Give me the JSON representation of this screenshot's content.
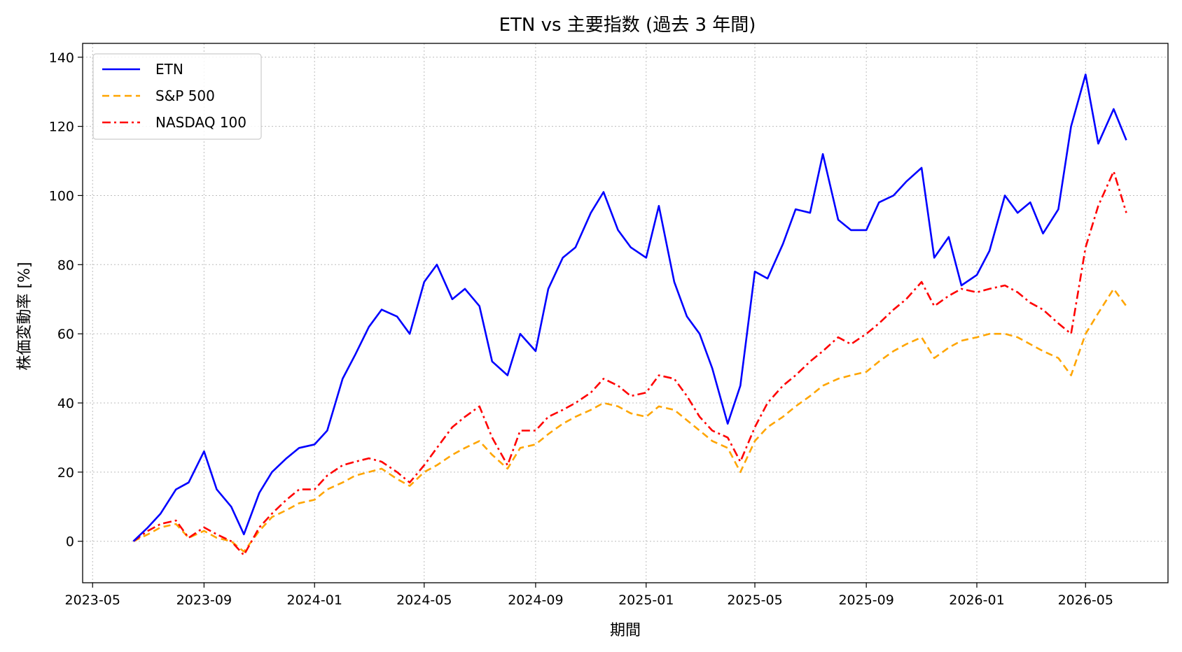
{
  "chart_data": {
    "type": "line",
    "title": "ETN vs 主要指数 (過去 3 年間)",
    "xlabel": "期間",
    "ylabel": "株価変動率 [%]",
    "x_tick_labels": [
      "2023-05",
      "2023-09",
      "2024-01",
      "2024-05",
      "2024-09",
      "2025-01",
      "2025-05",
      "2025-09",
      "2026-01",
      "2026-05"
    ],
    "y_ticks": [
      0,
      20,
      40,
      60,
      80,
      100,
      120,
      140
    ],
    "xlim": [
      "2023-04-20",
      "2026-07-31"
    ],
    "ylim": [
      -12,
      144
    ],
    "grid": true,
    "legend_position": "upper-left",
    "x": [
      "2023-06-15",
      "2023-07-01",
      "2023-07-15",
      "2023-08-01",
      "2023-08-15",
      "2023-09-01",
      "2023-09-15",
      "2023-10-01",
      "2023-10-15",
      "2023-11-01",
      "2023-11-15",
      "2023-12-01",
      "2023-12-15",
      "2024-01-01",
      "2024-01-15",
      "2024-02-01",
      "2024-02-15",
      "2024-03-01",
      "2024-03-15",
      "2024-04-01",
      "2024-04-15",
      "2024-05-01",
      "2024-05-15",
      "2024-06-01",
      "2024-06-15",
      "2024-07-01",
      "2024-07-15",
      "2024-08-01",
      "2024-08-15",
      "2024-09-01",
      "2024-09-15",
      "2024-10-01",
      "2024-10-15",
      "2024-11-01",
      "2024-11-15",
      "2024-12-01",
      "2024-12-15",
      "2025-01-01",
      "2025-01-15",
      "2025-02-01",
      "2025-02-15",
      "2025-03-01",
      "2025-03-15",
      "2025-04-01",
      "2025-04-15",
      "2025-05-01",
      "2025-05-15",
      "2025-06-01",
      "2025-06-15",
      "2025-07-01",
      "2025-07-15",
      "2025-08-01",
      "2025-08-15",
      "2025-09-01",
      "2025-09-15",
      "2025-10-01",
      "2025-10-15",
      "2025-11-01",
      "2025-11-15",
      "2025-12-01",
      "2025-12-15",
      "2026-01-01",
      "2026-01-15",
      "2026-02-01",
      "2026-02-15",
      "2026-03-01",
      "2026-03-15",
      "2026-04-01",
      "2026-04-15",
      "2026-05-01",
      "2026-05-15",
      "2026-06-01",
      "2026-06-15"
    ],
    "series": [
      {
        "name": "ETN",
        "color": "#0000ff",
        "dash": "solid",
        "values": [
          0,
          4,
          8,
          15,
          17,
          26,
          15,
          10,
          2,
          14,
          20,
          24,
          27,
          28,
          32,
          47,
          54,
          62,
          67,
          65,
          60,
          75,
          80,
          70,
          73,
          68,
          52,
          48,
          60,
          55,
          73,
          82,
          85,
          95,
          101,
          90,
          85,
          82,
          97,
          75,
          65,
          60,
          50,
          34,
          45,
          78,
          76,
          86,
          96,
          95,
          112,
          93,
          90,
          90,
          98,
          100,
          104,
          108,
          82,
          88,
          74,
          77,
          84,
          100,
          95,
          98,
          89,
          96,
          120,
          135,
          115,
          125,
          116
        ]
      },
      {
        "name": "S&P 500",
        "color": "#ffa500",
        "dash": "dashed",
        "values": [
          0,
          2,
          4,
          5,
          1,
          3,
          1,
          0,
          -3,
          3,
          7,
          9,
          11,
          12,
          15,
          17,
          19,
          20,
          21,
          18,
          16,
          20,
          22,
          25,
          27,
          29,
          25,
          21,
          27,
          28,
          31,
          34,
          36,
          38,
          40,
          39,
          37,
          36,
          39,
          38,
          35,
          32,
          29,
          27,
          20,
          29,
          33,
          36,
          39,
          42,
          45,
          47,
          48,
          49,
          52,
          55,
          57,
          59,
          53,
          56,
          58,
          59,
          60,
          60,
          59,
          57,
          55,
          53,
          48,
          60,
          66,
          73,
          68
        ]
      },
      {
        "name": "NASDAQ 100",
        "color": "#ff0000",
        "dash": "dashdot",
        "values": [
          0,
          3,
          5,
          6,
          1,
          4,
          2,
          0,
          -4,
          4,
          8,
          12,
          15,
          15,
          19,
          22,
          23,
          24,
          23,
          20,
          17,
          22,
          27,
          33,
          36,
          39,
          30,
          22,
          32,
          32,
          36,
          38,
          40,
          43,
          47,
          45,
          42,
          43,
          48,
          47,
          42,
          36,
          32,
          30,
          23,
          33,
          40,
          45,
          48,
          52,
          55,
          59,
          57,
          60,
          63,
          67,
          70,
          75,
          68,
          71,
          73,
          72,
          73,
          74,
          72,
          69,
          67,
          63,
          60,
          85,
          97,
          107,
          95
        ]
      }
    ]
  }
}
